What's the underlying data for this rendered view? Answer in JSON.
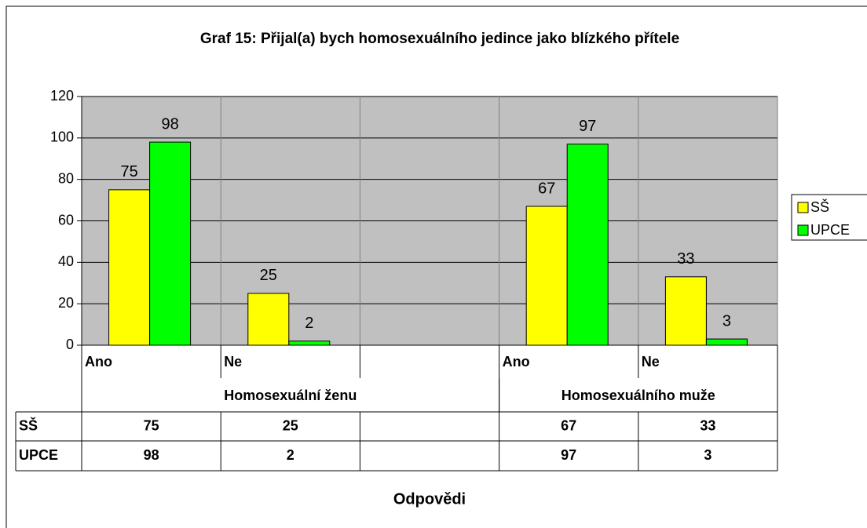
{
  "chart_data": {
    "type": "bar",
    "title": "Graf 15: Přijal(a) bych homosexuálního jedince jako blízkého přítele",
    "x_label": "Odpovědi",
    "categories": [
      "Ano",
      "Ne",
      null,
      "Ano",
      "Ne"
    ],
    "groups": [
      {
        "label": "Homosexuální ženu",
        "count": 3
      },
      {
        "label": "Homosexuálního muže",
        "count": 2
      }
    ],
    "series": [
      {
        "name": "SŠ",
        "color": "#ffff00",
        "values": [
          75,
          25,
          null,
          67,
          33
        ]
      },
      {
        "name": "UPCE",
        "color": "#00ff00",
        "values": [
          98,
          2,
          null,
          97,
          3
        ]
      }
    ],
    "ylim": [
      0,
      120
    ],
    "yticks": [
      0,
      20,
      40,
      60,
      80,
      100,
      120
    ],
    "grid": true,
    "legend": "right",
    "data_table": true
  }
}
